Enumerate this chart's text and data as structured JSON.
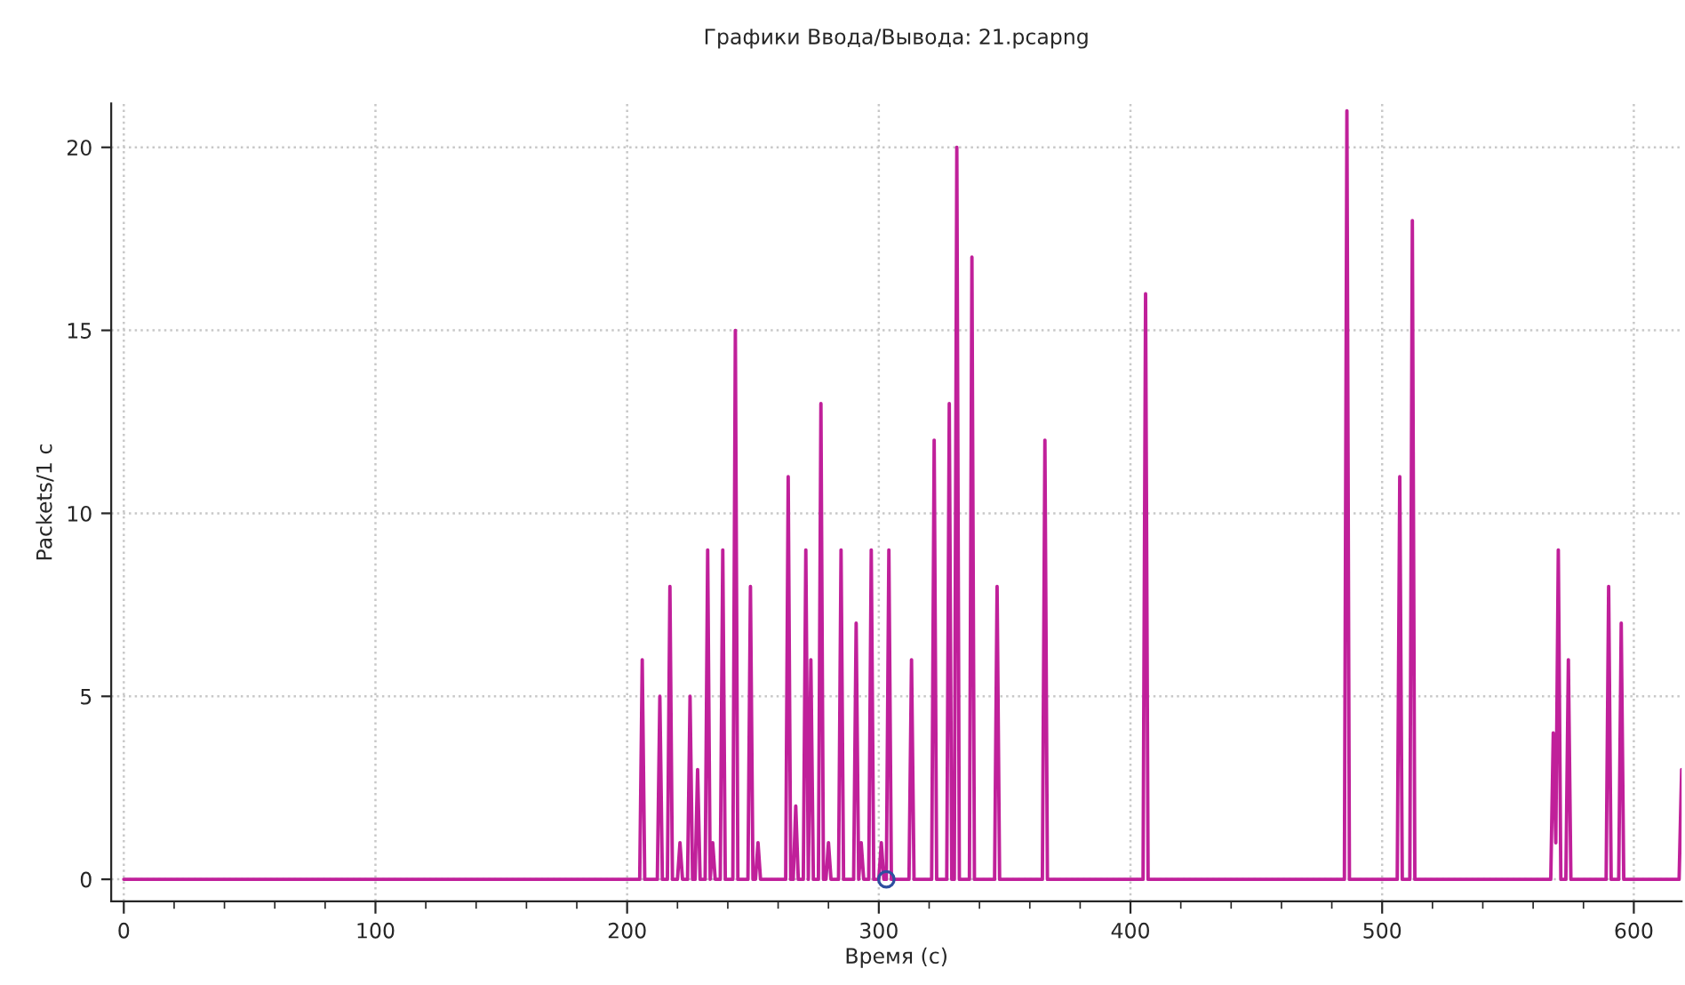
{
  "chart_data": {
    "type": "line",
    "title": "Графики Ввода/Вывода: 21.pcapng",
    "xlabel": "Время (c)",
    "ylabel": "Packets/1 c",
    "xlim": [
      -5,
      619
    ],
    "ylim": [
      -0.6,
      21.2
    ],
    "xticks": [
      0,
      {
        "value": 20,
        "label": null
      },
      {
        "value": 40,
        "label": null
      },
      {
        "value": 60,
        "label": null
      },
      {
        "value": 80,
        "label": null
      },
      100,
      {
        "value": 120,
        "label": null
      },
      {
        "value": 140,
        "label": null
      },
      {
        "value": 160,
        "label": null
      },
      {
        "value": 180,
        "label": null
      },
      200,
      {
        "value": 220,
        "label": null
      },
      {
        "value": 240,
        "label": null
      },
      {
        "value": 260,
        "label": null
      },
      {
        "value": 280,
        "label": null
      },
      300,
      {
        "value": 320,
        "label": null
      },
      {
        "value": 340,
        "label": null
      },
      {
        "value": 360,
        "label": null
      },
      {
        "value": 380,
        "label": null
      },
      400,
      {
        "value": 420,
        "label": null
      },
      {
        "value": 440,
        "label": null
      },
      {
        "value": 460,
        "label": null
      },
      {
        "value": 480,
        "label": null
      },
      500,
      {
        "value": 520,
        "label": null
      },
      {
        "value": 540,
        "label": null
      },
      {
        "value": 560,
        "label": null
      },
      {
        "value": 580,
        "label": null
      },
      600
    ],
    "yticks": [
      0,
      5,
      10,
      15,
      20
    ],
    "grid": true,
    "legend": false,
    "series": [
      {
        "color": "#c0209a",
        "line_style": "solid",
        "marker": "none",
        "x": [
          0,
          205,
          206,
          207,
          212,
          213,
          214,
          216,
          217,
          218,
          220,
          221,
          222,
          224,
          225,
          226,
          227,
          228,
          229,
          231,
          232,
          233,
          234,
          235,
          237,
          238,
          239,
          242,
          243,
          244,
          248,
          249,
          250,
          251,
          252,
          253,
          263,
          264,
          265,
          266,
          267,
          268,
          270,
          271,
          272,
          273,
          274,
          276,
          277,
          278,
          279,
          280,
          281,
          284,
          285,
          286,
          290,
          291,
          292,
          293,
          294,
          296,
          297,
          298,
          300,
          301,
          302,
          303,
          304,
          305,
          312,
          313,
          314,
          321,
          322,
          323,
          327,
          328,
          329,
          330,
          331,
          332,
          336,
          337,
          338,
          346,
          347,
          348,
          365,
          366,
          367,
          405,
          406,
          407,
          485,
          486,
          487,
          506,
          507,
          508,
          511,
          512,
          513,
          567,
          568,
          569,
          570,
          571,
          573,
          574,
          575,
          589,
          590,
          591,
          594,
          595,
          596,
          618,
          619
        ],
        "values": [
          0,
          0,
          6,
          0,
          0,
          5,
          0,
          0,
          8,
          0,
          0,
          1,
          0,
          0,
          5,
          0,
          0,
          3,
          0,
          0,
          9,
          0,
          1,
          0,
          0,
          9,
          0,
          0,
          15,
          0,
          0,
          8,
          0,
          0,
          1,
          0,
          0,
          11,
          0,
          0,
          2,
          0,
          0,
          9,
          0,
          6,
          0,
          0,
          13,
          0,
          0,
          1,
          0,
          0,
          9,
          0,
          0,
          7,
          0,
          1,
          0,
          0,
          9,
          0,
          0,
          1,
          0,
          0,
          9,
          0,
          0,
          6,
          0,
          0,
          12,
          0,
          0,
          13,
          0,
          0,
          20,
          0,
          0,
          17,
          0,
          0,
          8,
          0,
          0,
          12,
          0,
          0,
          16,
          0,
          0,
          21,
          0,
          0,
          11,
          0,
          0,
          18,
          0,
          0,
          4,
          1,
          9,
          0,
          0,
          6,
          0,
          0,
          8,
          0,
          0,
          7,
          0,
          0,
          3
        ]
      },
      {
        "type": "scatter",
        "color": "#2f4f9f",
        "marker": "circle",
        "x": [
          303
        ],
        "values": [
          0
        ]
      }
    ]
  }
}
